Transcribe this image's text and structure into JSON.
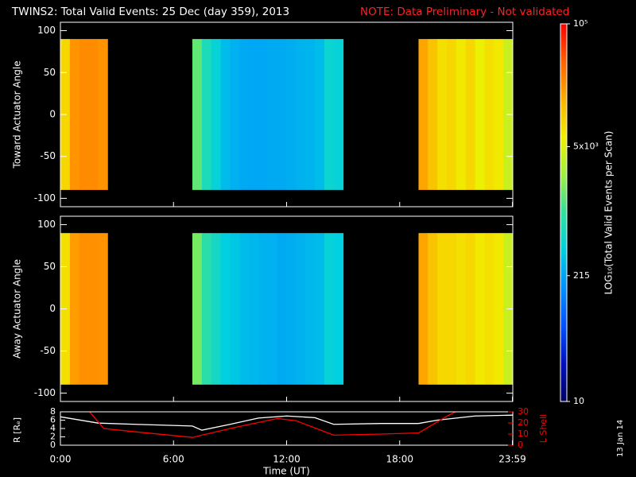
{
  "title": "TWINS2: Total Valid Events: 25 Dec (day 359), 2013",
  "note": "NOTE: Data Preliminary - Not validated",
  "side_note": "13 Jan 14",
  "chart_data": [
    {
      "type": "heatmap",
      "xlim": [
        0,
        24
      ],
      "ylim": [
        -110,
        110
      ],
      "yticks": [
        -100,
        -50,
        0,
        50,
        100
      ],
      "x_bins": [
        0,
        0.5,
        1,
        1.5,
        2,
        2.5,
        3,
        3.5,
        4,
        4.5,
        5,
        5.5,
        6,
        6.5,
        7,
        7.5,
        8,
        8.5,
        9,
        9.5,
        10,
        10.5,
        11,
        11.5,
        12,
        12.5,
        13,
        13.5,
        14,
        14.5,
        15,
        15.5,
        16,
        16.5,
        17,
        17.5,
        18,
        18.5,
        19,
        19.5,
        20,
        20.5,
        21,
        21.5,
        22,
        22.5,
        23,
        23.5,
        24
      ],
      "y_bins": [
        -90,
        90
      ],
      "panels": [
        {
          "ylabel": "Toward Actuator Angle",
          "values": [
            [
              9000,
              22000,
              24000,
              24000,
              22000,
              null,
              null,
              null,
              null,
              null,
              null,
              null,
              null,
              null,
              1500,
              700,
              450,
              300,
              250,
              230,
              220,
              220,
              230,
              230,
              240,
              260,
              270,
              300,
              500,
              450,
              null,
              null,
              null,
              null,
              null,
              null,
              null,
              null,
              18000,
              12000,
              8000,
              9000,
              7000,
              9000,
              6000,
              8000,
              7000,
              4000
            ]
          ]
        },
        {
          "ylabel": "Away Actuator Angle",
          "values": [
            [
              8000,
              20000,
              23000,
              23000,
              22000,
              null,
              null,
              null,
              null,
              null,
              null,
              null,
              null,
              null,
              1800,
              900,
              600,
              400,
              350,
              300,
              280,
              260,
              250,
              230,
              240,
              260,
              280,
              300,
              450,
              400,
              null,
              null,
              null,
              null,
              null,
              null,
              null,
              null,
              18000,
              12000,
              9000,
              9000,
              8000,
              9000,
              7000,
              8000,
              7000,
              4000
            ]
          ]
        }
      ],
      "colorbar": {
        "label": "LOG₁₀(Total Valid Events per Scan)",
        "log": true,
        "zlim": [
          10,
          100000
        ],
        "zticks": [
          10,
          215,
          {
            "value": 5000,
            "label": "5x10³"
          },
          {
            "value": 100000,
            "label": "10⁵"
          }
        ],
        "colormap": [
          "#000060",
          "#0010c0",
          "#0050ff",
          "#0090ff",
          "#00d0e0",
          "#30e0a0",
          "#a0f040",
          "#f0f000",
          "#ffb000",
          "#ff6000",
          "#ff0000"
        ]
      }
    },
    {
      "type": "line",
      "xlabel": "Time (UT)",
      "ylabel": "R [Rₑ]",
      "y2label": "L Shell",
      "xlim": [
        0,
        24
      ],
      "xticks": [
        {
          "value": 0,
          "label": "0:00"
        },
        {
          "value": 6,
          "label": "6:00"
        },
        {
          "value": 12,
          "label": "12:00"
        },
        {
          "value": 18,
          "label": "18:00"
        },
        {
          "value": 23.98,
          "label": "23:59"
        }
      ],
      "ylim": [
        0,
        8
      ],
      "yticks": [
        0,
        2,
        4,
        6,
        8
      ],
      "y2lim": [
        0,
        30
      ],
      "y2ticks": [
        0,
        10,
        20,
        30
      ],
      "series": [
        {
          "color": "#ffffff",
          "x": [
            0,
            2,
            4,
            7,
            7.5,
            9,
            10.5,
            12,
            13.5,
            14.5,
            17,
            19,
            20,
            22,
            24
          ],
          "values": [
            6.8,
            5.3,
            5.0,
            4.6,
            3.6,
            5.0,
            6.5,
            7.0,
            6.6,
            5.0,
            5.2,
            5.2,
            6.0,
            7.0,
            7.2
          ]
        },
        {
          "color": "#ff0000",
          "axis": "y2",
          "x": [
            1.5,
            2.3,
            4,
            7,
            9,
            11.5,
            12.5,
            14.5,
            17,
            19,
            20.5,
            21.2
          ],
          "values": [
            31,
            15,
            12,
            7,
            15,
            24,
            22,
            9,
            10,
            11,
            26,
            32
          ]
        }
      ]
    }
  ]
}
